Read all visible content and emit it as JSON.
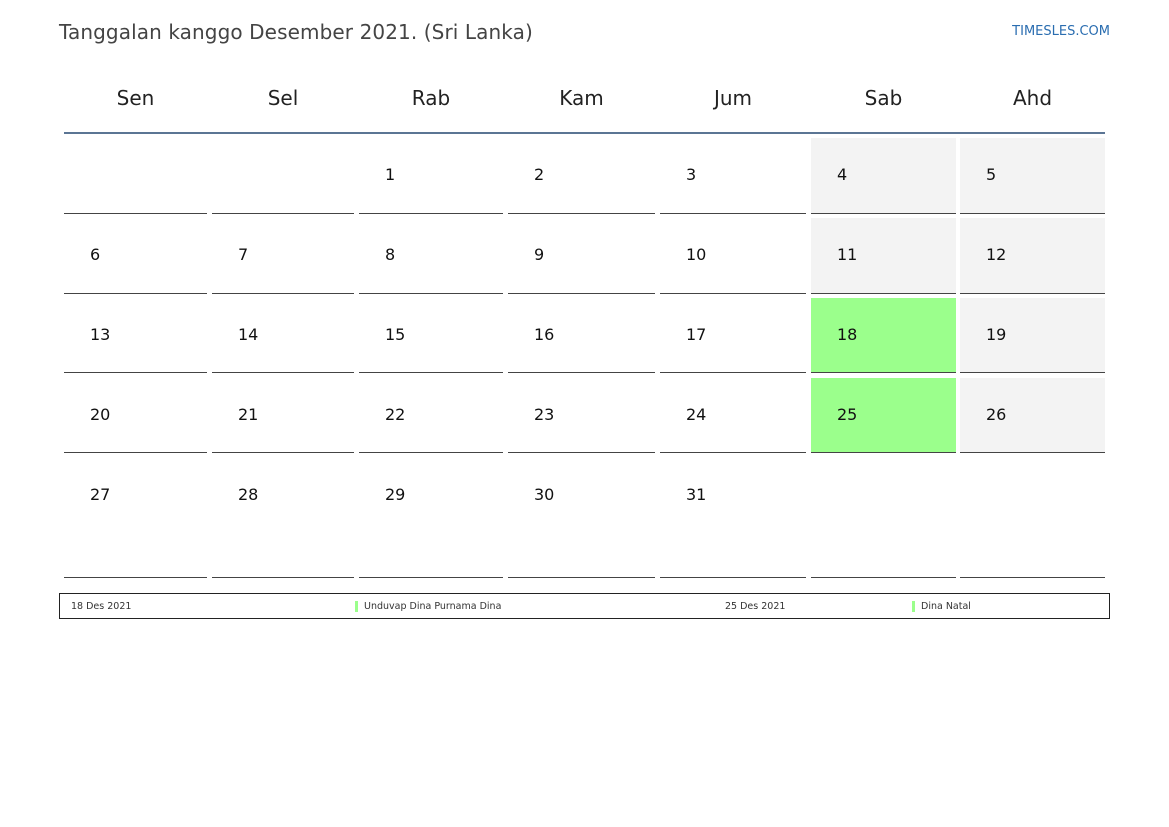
{
  "header": {
    "title": "Tanggalan kanggo Desember 2021. (Sri Lanka)",
    "site": "TIMESLES.COM"
  },
  "weekdays": [
    "Sen",
    "Sel",
    "Rab",
    "Kam",
    "Jum",
    "Sab",
    "Ahd"
  ],
  "weeks": [
    [
      "",
      "",
      "1",
      "2",
      "3",
      "4",
      "5"
    ],
    [
      "6",
      "7",
      "8",
      "9",
      "10",
      "11",
      "12"
    ],
    [
      "13",
      "14",
      "15",
      "16",
      "17",
      "18",
      "19"
    ],
    [
      "20",
      "21",
      "22",
      "23",
      "24",
      "25",
      "26"
    ],
    [
      "27",
      "28",
      "29",
      "30",
      "31",
      "",
      ""
    ]
  ],
  "holidays": [
    {
      "date": "18 Des 2021",
      "name": "Unduvap Dina Purnama Dina",
      "day": "18"
    },
    {
      "date": "25 Des 2021",
      "name": "Dina Natal",
      "day": "25"
    }
  ],
  "colors": {
    "holiday": "#9bff8c",
    "weekend": "#f3f3f3",
    "accent_line": "#5b7594",
    "link": "#2a6db0"
  }
}
